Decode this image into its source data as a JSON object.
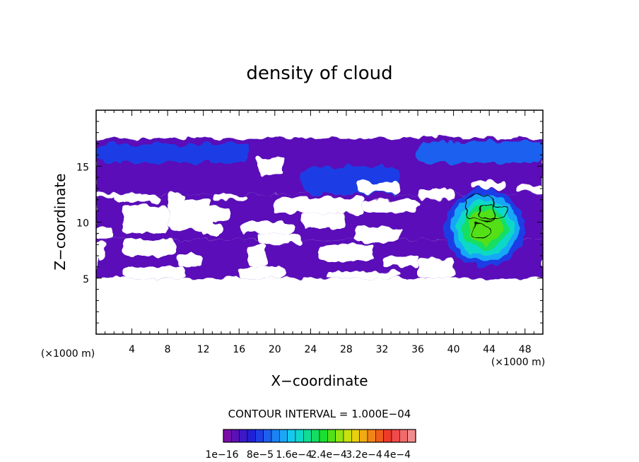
{
  "chart_data": {
    "type": "heatmap",
    "title": "density of cloud",
    "xlabel": "X−coordinate",
    "ylabel": "Z−coordinate",
    "x_unit": "(×1000 m)",
    "y_unit": "(×1000 m)",
    "xlim": [
      0,
      50
    ],
    "ylim": [
      0,
      20
    ],
    "x_ticks": [
      4,
      8,
      12,
      16,
      20,
      24,
      28,
      32,
      36,
      40,
      44,
      48
    ],
    "y_ticks": [
      5,
      10,
      15
    ],
    "contour_interval_text": "CONTOUR INTERVAL = 1.000E−04",
    "colorbar": {
      "labels": [
        "1e−16",
        "8e−5",
        "1.6e−4",
        "2.4e−4",
        "3.2e−4",
        "4e−4"
      ],
      "colors": [
        "#7a0ca8",
        "#5a10b8",
        "#3c18c8",
        "#2020d8",
        "#1e3ee6",
        "#1d60ef",
        "#1b82f4",
        "#19a8f6",
        "#14c8ee",
        "#10d8c8",
        "#10dc96",
        "#12de62",
        "#1ade30",
        "#52e018",
        "#92e412",
        "#c8e00e",
        "#e8d00e",
        "#f2aa12",
        "#f28416",
        "#f05c1a",
        "#ee3a28",
        "#f04a4a",
        "#f26a6a",
        "#f28c8c"
      ]
    },
    "regions": [
      {
        "level": 1,
        "label": "upper band",
        "x_range": [
          0,
          50
        ],
        "z_range": [
          12.5,
          17.5
        ]
      },
      {
        "level": 1,
        "label": "middle band",
        "x_range": [
          0,
          50
        ],
        "z_range": [
          8.5,
          12.5
        ]
      },
      {
        "level": 1,
        "label": "lower band",
        "x_range": [
          0,
          50
        ],
        "z_range": [
          5,
          8.5
        ]
      },
      {
        "level": 4,
        "label": "top-left blue layer",
        "x_range": [
          0,
          17
        ],
        "z_range": [
          15.3,
          17
        ]
      },
      {
        "level": 5,
        "label": "top-right blue layer",
        "x_range": [
          36,
          50
        ],
        "z_range": [
          15.3,
          17.2
        ]
      },
      {
        "level": 4,
        "label": "center blue patch",
        "x_range": [
          23,
          34
        ],
        "z_range": [
          12.5,
          15
        ]
      },
      {
        "level": 13,
        "label": "convective core",
        "x_range": [
          39,
          48
        ],
        "z_range": [
          6,
          13
        ]
      }
    ]
  }
}
